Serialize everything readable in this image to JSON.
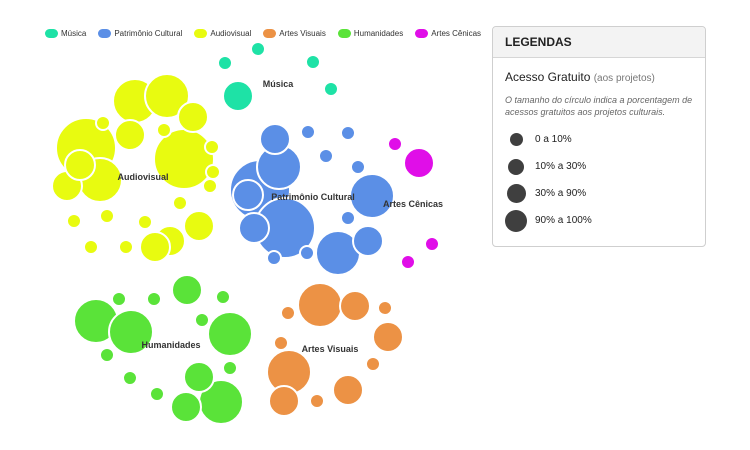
{
  "legend": {
    "items": [
      {
        "label": "Música",
        "color": "#1ee2a6"
      },
      {
        "label": "Patrimônio Cultural",
        "color": "#5b8fe6"
      },
      {
        "label": "Audiovisual",
        "color": "#e8fb10"
      },
      {
        "label": "Artes Visuais",
        "color": "#ec9245"
      },
      {
        "label": "Humanidades",
        "color": "#5ae339"
      },
      {
        "label": "Artes Cênicas",
        "color": "#e00ee8"
      }
    ]
  },
  "panel": {
    "title": "LEGENDAS",
    "subtitle": "Acesso Gratuito",
    "subtitle_paren": "(aos projetos)",
    "note": "O tamanho do círculo indica a porcentagem de acessos gratuitos aos projetos culturais.",
    "sizes": [
      {
        "label": "0 a 10%",
        "icon": "small-circle-icon"
      },
      {
        "label": "10% a 30%",
        "icon": "medium-circle-icon"
      },
      {
        "label": "30% a 90%",
        "icon": "large-circle-icon"
      },
      {
        "label": "90% a 100%",
        "icon": "xlarge-circle-icon"
      }
    ]
  },
  "chart_data": {
    "type": "bubble-cluster",
    "size_encoding": "Acesso Gratuito (aos projetos)",
    "size_classes": [
      "0 a 10%",
      "10% a 30%",
      "30% a 90%",
      "90% a 100%"
    ],
    "groups": [
      {
        "name": "Música",
        "label": "Música",
        "color": "#1ee2a6",
        "bubbles": [
          "0 a 10%",
          "0 a 10%",
          "0 a 10%",
          "0 a 10%",
          "10% a 30%"
        ]
      },
      {
        "name": "Audiovisual",
        "label": "Audiovisual",
        "color": "#e8fb10",
        "bubbles": [
          "30% a 90%",
          "30% a 90%",
          "90% a 100%",
          "90% a 100%",
          "30% a 90%",
          "10% a 30%",
          "10% a 30%",
          "10% a 30%",
          "10% a 30%",
          "0 a 10%",
          "0 a 10%",
          "0 a 10%",
          "0 a 10%",
          "0 a 10%",
          "0 a 10%",
          "0 a 10%",
          "0 a 10%",
          "0 a 10%",
          "0 a 10%",
          "10% a 30%",
          "10% a 30%",
          "10% a 30%",
          "0 a 10%"
        ]
      },
      {
        "name": "Patrimônio Cultural",
        "label": "Patrimônio Cultural",
        "color": "#5b8fe6",
        "bubbles": [
          "90% a 100%",
          "90% a 100%",
          "30% a 90%",
          "30% a 90%",
          "30% a 90%",
          "10% a 30%",
          "10% a 30%",
          "10% a 30%",
          "0 a 10%",
          "0 a 10%",
          "0 a 10%",
          "0 a 10%",
          "0 a 10%",
          "0 a 10%",
          "0 a 10%",
          "10% a 30%"
        ]
      },
      {
        "name": "Artes Cênicas",
        "label": "Artes Cênicas",
        "color": "#e00ee8",
        "bubbles": [
          "10% a 30%",
          "0 a 10%",
          "0 a 10%",
          "0 a 10%"
        ]
      },
      {
        "name": "Humanidades",
        "label": "Humanidades",
        "color": "#5ae339",
        "bubbles": [
          "30% a 90%",
          "30% a 90%",
          "30% a 90%",
          "30% a 90%",
          "10% a 30%",
          "10% a 30%",
          "10% a 30%",
          "0 a 10%",
          "0 a 10%",
          "0 a 10%",
          "0 a 10%",
          "0 a 10%",
          "0 a 10%",
          "0 a 10%",
          "0 a 10%"
        ]
      },
      {
        "name": "Artes Visuais",
        "label": "Artes Visuais",
        "color": "#ec9245",
        "bubbles": [
          "30% a 90%",
          "30% a 90%",
          "10% a 30%",
          "10% a 30%",
          "10% a 30%",
          "10% a 30%",
          "0 a 10%",
          "0 a 10%",
          "0 a 10%",
          "0 a 10%",
          "0 a 10%"
        ]
      }
    ]
  }
}
